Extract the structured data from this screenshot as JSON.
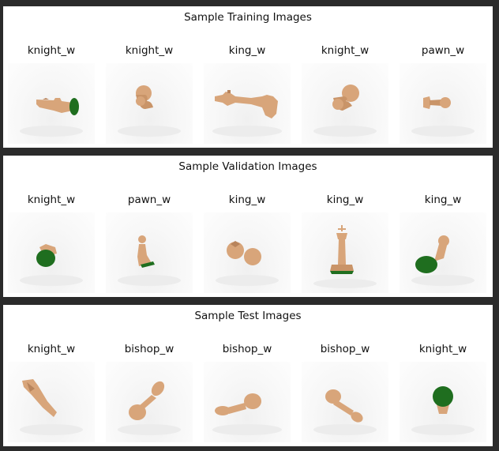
{
  "colors": {
    "wood": "#d8a57a",
    "wood_dark": "#b8845c",
    "felt": "#1f6e1f"
  },
  "panels": [
    {
      "title": "Sample Training Images",
      "images": [
        {
          "label": "knight_w",
          "icon": "knight-lying-icon"
        },
        {
          "label": "knight_w",
          "icon": "knight-head-icon"
        },
        {
          "label": "king_w",
          "icon": "king-lying-icon"
        },
        {
          "label": "knight_w",
          "icon": "knight-head-icon"
        },
        {
          "label": "pawn_w",
          "icon": "pawn-lying-icon"
        }
      ]
    },
    {
      "title": "Sample Validation Images",
      "images": [
        {
          "label": "knight_w",
          "icon": "knight-base-up-icon"
        },
        {
          "label": "pawn_w",
          "icon": "pawn-upright-icon"
        },
        {
          "label": "king_w",
          "icon": "king-top-icon"
        },
        {
          "label": "king_w",
          "icon": "king-upright-icon"
        },
        {
          "label": "king_w",
          "icon": "king-tilted-icon"
        }
      ]
    },
    {
      "title": "Sample Test Images",
      "images": [
        {
          "label": "knight_w",
          "icon": "knight-diagonal-icon"
        },
        {
          "label": "bishop_w",
          "icon": "bishop-diagonal-icon"
        },
        {
          "label": "bishop_w",
          "icon": "bishop-lying-icon"
        },
        {
          "label": "bishop_w",
          "icon": "bishop-diagonal-down-icon"
        },
        {
          "label": "knight_w",
          "icon": "knight-base-up-icon"
        }
      ]
    }
  ]
}
